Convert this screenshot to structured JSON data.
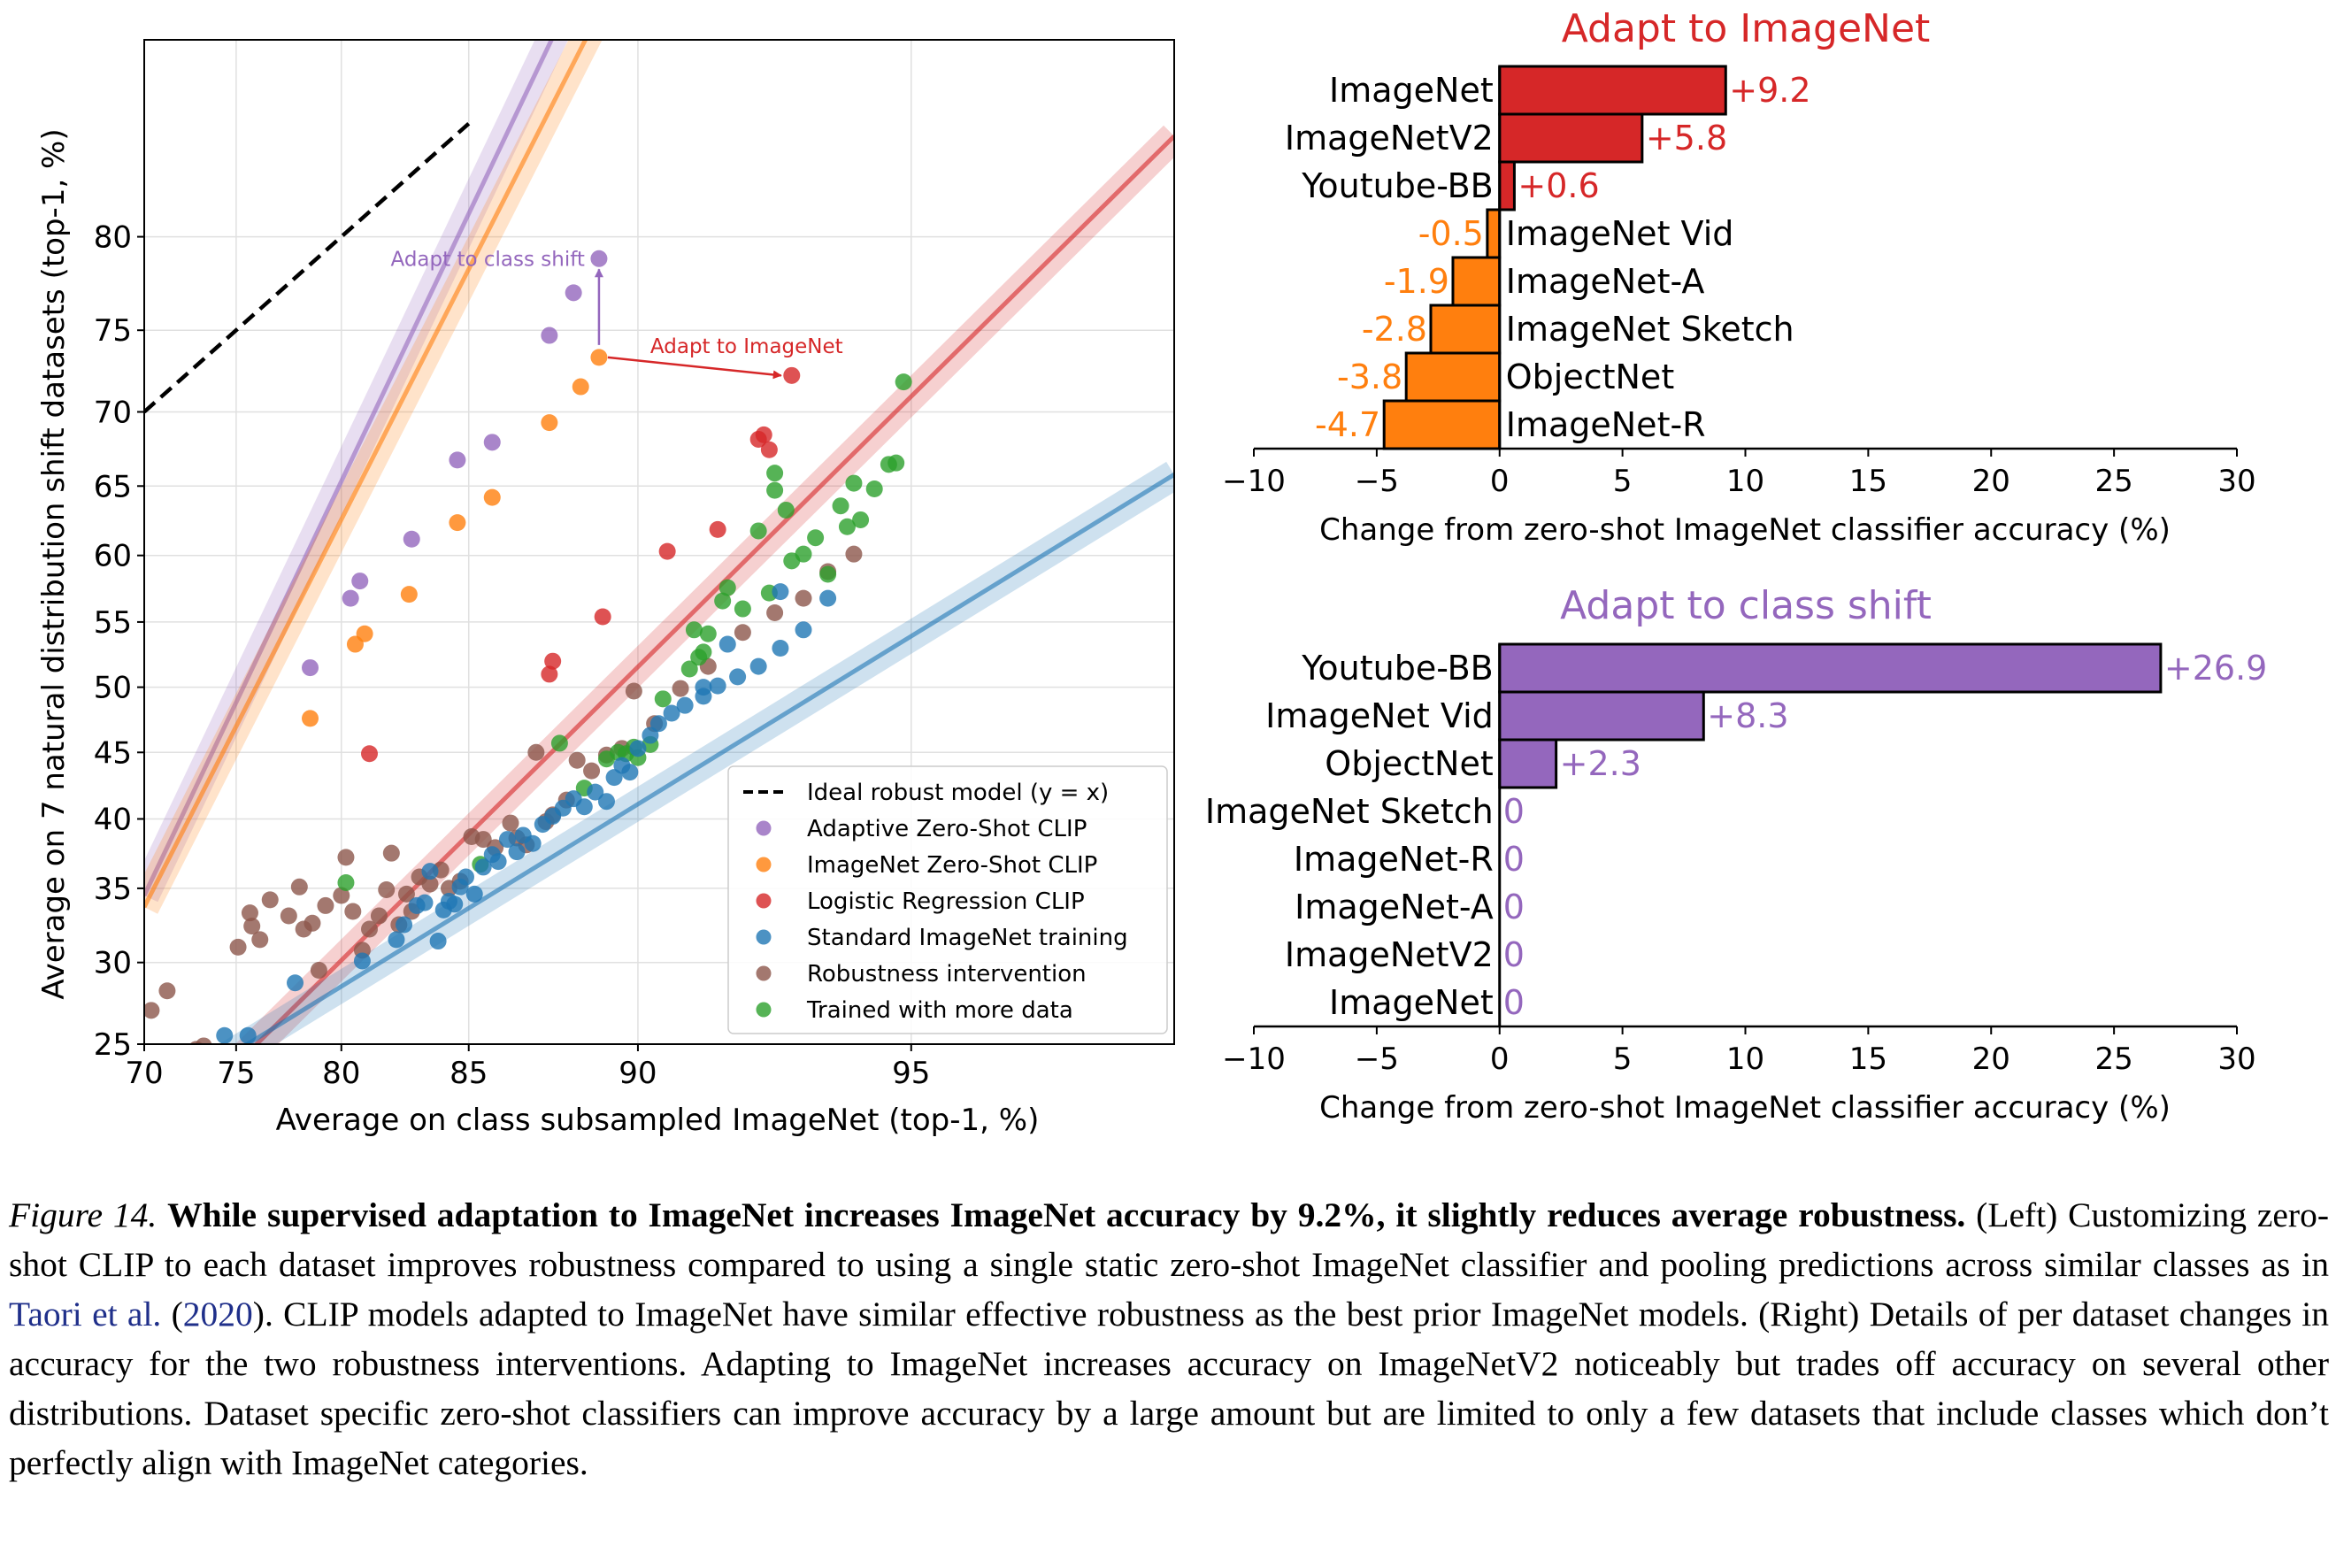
{
  "caption": {
    "figure_label": "Figure 14.",
    "bold_text": "While supervised adaptation to ImageNet increases ImageNet accuracy by 9.2%, it slightly reduces average robustness.",
    "body_before_cite": "(Left) Customizing zero-shot CLIP to each dataset improves robustness compared to using a single static zero-shot ImageNet classifier and pooling predictions across similar classes as in",
    "cite_author": "Taori et al.",
    "cite_year_open": " (",
    "cite_year": "2020",
    "cite_year_close": ").",
    "body_after_cite": " CLIP models adapted to ImageNet have similar effective robustness as the best prior ImageNet models. (Right) Details of per dataset changes in accuracy for the two robustness interventions. Adapting to ImageNet increases accuracy on ImageNetV2 noticeably but trades off accuracy on several other distributions. Dataset specific zero-shot classifiers can improve accuracy by a large amount but are limited to only a few datasets that include classes which don’t perfectly align with ImageNet categories."
  },
  "chart_data": [
    {
      "type": "scatter",
      "xlabel": "Average on class subsampled ImageNet (top-1, %)",
      "ylabel": "Average on 7 natural distribution shift datasets (top-1, %)",
      "xlim": [
        70,
        97.5
      ],
      "ylim": [
        25,
        88
      ],
      "y_scale": "logit",
      "x_scale": "logit",
      "x_ticks": [
        70,
        75,
        80,
        85,
        90,
        95
      ],
      "y_ticks": [
        25,
        30,
        35,
        40,
        45,
        50,
        55,
        60,
        65,
        70,
        75,
        80
      ],
      "grid": true,
      "legend_position": "lower-right",
      "ideal_line": {
        "label": "Ideal robust model (y = x)",
        "color": "#000000"
      },
      "annotations": [
        {
          "text": "Adapt to class shift",
          "color": "#9467bd",
          "from": [
            89.0,
            73.4
          ],
          "to": [
            89.0,
            78.9
          ]
        },
        {
          "text": "Adapt to ImageNet",
          "color": "#d62728",
          "from": [
            89.0,
            73.4
          ],
          "to": [
            93.2,
            72.3
          ]
        }
      ],
      "series": [
        {
          "name": "Adaptive Zero-Shot CLIP",
          "color": "#9467bd",
          "fit": [
            [
              70,
              34.5
            ],
            [
              91.4,
              95
            ]
          ],
          "points": [
            [
              78.6,
              51.5
            ],
            [
              80.4,
              56.8
            ],
            [
              80.8,
              58.1
            ],
            [
              82.9,
              61.2
            ],
            [
              84.6,
              66.8
            ],
            [
              85.8,
              68.0
            ],
            [
              87.6,
              74.7
            ],
            [
              88.3,
              77.1
            ],
            [
              89.0,
              78.9
            ]
          ]
        },
        {
          "name": "ImageNet Zero-Shot CLIP",
          "color": "#ff7f0e",
          "fit": [
            [
              70,
              33.7
            ],
            [
              92.3,
              95
            ]
          ],
          "points": [
            [
              78.6,
              47.6
            ],
            [
              80.6,
              53.3
            ],
            [
              81.0,
              54.1
            ],
            [
              82.8,
              57.1
            ],
            [
              84.6,
              62.4
            ],
            [
              85.8,
              64.2
            ],
            [
              87.6,
              69.3
            ],
            [
              88.5,
              71.6
            ],
            [
              89.0,
              73.4
            ]
          ]
        },
        {
          "name": "Logistic Regression CLIP",
          "color": "#d62728",
          "fit": [
            [
              73.2,
              22.0
            ],
            [
              97.5,
              84.5
            ]
          ],
          "points": [
            [
              81.2,
              44.9
            ],
            [
              87.6,
              51.0
            ],
            [
              87.7,
              52.0
            ],
            [
              89.1,
              55.4
            ],
            [
              90.7,
              60.3
            ],
            [
              91.8,
              61.9
            ],
            [
              93.2,
              72.3
            ],
            [
              92.8,
              67.5
            ],
            [
              92.6,
              68.2
            ],
            [
              92.7,
              68.5
            ]
          ]
        },
        {
          "name": "Standard ImageNet training",
          "color": "#1f77b4",
          "fit": [
            [
              73.8,
              23.8
            ],
            [
              97.5,
              65.8
            ]
          ],
          "points": [
            [
              74.4,
              25.5
            ],
            [
              75.6,
              25.5
            ],
            [
              77.9,
              28.7
            ],
            [
              80.9,
              30.1
            ],
            [
              82.3,
              31.5
            ],
            [
              82.6,
              32.5
            ],
            [
              83.1,
              33.8
            ],
            [
              83.4,
              34.0
            ],
            [
              83.6,
              36.2
            ],
            [
              83.9,
              31.4
            ],
            [
              84.1,
              33.5
            ],
            [
              84.3,
              34.1
            ],
            [
              84.5,
              33.9
            ],
            [
              84.7,
              35.1
            ],
            [
              84.9,
              35.8
            ],
            [
              85.2,
              34.6
            ],
            [
              85.5,
              36.5
            ],
            [
              85.8,
              37.4
            ],
            [
              86.0,
              36.9
            ],
            [
              86.3,
              38.5
            ],
            [
              86.6,
              37.6
            ],
            [
              86.8,
              38.8
            ],
            [
              87.1,
              38.2
            ],
            [
              87.4,
              39.6
            ],
            [
              87.7,
              40.2
            ],
            [
              88.0,
              40.8
            ],
            [
              88.3,
              41.5
            ],
            [
              88.6,
              40.9
            ],
            [
              88.9,
              42.0
            ],
            [
              89.2,
              41.3
            ],
            [
              89.4,
              43.1
            ],
            [
              89.6,
              44.0
            ],
            [
              89.8,
              43.5
            ],
            [
              90.0,
              45.3
            ],
            [
              90.3,
              46.3
            ],
            [
              90.5,
              47.2
            ],
            [
              90.8,
              48.0
            ],
            [
              91.1,
              48.6
            ],
            [
              91.5,
              49.3
            ],
            [
              91.8,
              50.1
            ],
            [
              92.2,
              50.8
            ],
            [
              92.6,
              51.6
            ],
            [
              93.0,
              53.0
            ],
            [
              93.4,
              54.4
            ],
            [
              93.8,
              56.8
            ],
            [
              93.0,
              57.3
            ],
            [
              92.0,
              53.3
            ],
            [
              91.5,
              50.0
            ]
          ]
        },
        {
          "name": "Robustness intervention",
          "color": "#8c564b",
          "fit": null,
          "points": [
            [
              70.4,
              27.0
            ],
            [
              71.3,
              28.2
            ],
            [
              72.9,
              24.7
            ],
            [
              73.3,
              24.9
            ],
            [
              75.1,
              31.0
            ],
            [
              75.7,
              33.3
            ],
            [
              75.8,
              32.4
            ],
            [
              76.2,
              31.5
            ],
            [
              76.7,
              34.2
            ],
            [
              77.6,
              33.1
            ],
            [
              78.1,
              35.1
            ],
            [
              78.3,
              32.2
            ],
            [
              78.7,
              32.6
            ],
            [
              79.0,
              29.5
            ],
            [
              79.3,
              33.8
            ],
            [
              80.0,
              34.5
            ],
            [
              80.2,
              37.2
            ],
            [
              80.5,
              33.4
            ],
            [
              80.9,
              30.8
            ],
            [
              81.2,
              32.2
            ],
            [
              81.6,
              33.1
            ],
            [
              81.9,
              34.9
            ],
            [
              82.1,
              37.5
            ],
            [
              82.4,
              32.5
            ],
            [
              82.7,
              34.6
            ],
            [
              82.9,
              33.4
            ],
            [
              83.2,
              35.8
            ],
            [
              83.6,
              35.3
            ],
            [
              84.0,
              36.3
            ],
            [
              84.3,
              35.0
            ],
            [
              84.7,
              35.5
            ],
            [
              85.1,
              38.7
            ],
            [
              85.5,
              38.5
            ],
            [
              85.9,
              37.9
            ],
            [
              86.4,
              39.7
            ],
            [
              86.6,
              38.6
            ],
            [
              86.9,
              38.1
            ],
            [
              87.2,
              45.0
            ],
            [
              87.5,
              39.8
            ],
            [
              87.7,
              40.3
            ],
            [
              88.1,
              41.4
            ],
            [
              88.4,
              44.4
            ],
            [
              88.8,
              43.6
            ],
            [
              89.2,
              44.8
            ],
            [
              89.6,
              45.3
            ],
            [
              89.9,
              49.7
            ],
            [
              90.4,
              47.2
            ],
            [
              91.0,
              49.9
            ],
            [
              91.6,
              51.6
            ],
            [
              92.3,
              54.2
            ],
            [
              92.9,
              55.7
            ],
            [
              93.4,
              56.8
            ],
            [
              93.8,
              58.8
            ],
            [
              94.2,
              60.1
            ]
          ]
        },
        {
          "name": "Trained with more data",
          "color": "#2ca02c",
          "fit": null,
          "points": [
            [
              80.2,
              35.4
            ],
            [
              85.4,
              36.7
            ],
            [
              87.9,
              45.7
            ],
            [
              88.6,
              42.3
            ],
            [
              89.2,
              44.5
            ],
            [
              89.5,
              45.0
            ],
            [
              89.7,
              44.9
            ],
            [
              89.9,
              45.4
            ],
            [
              90.0,
              44.6
            ],
            [
              90.3,
              45.6
            ],
            [
              90.6,
              49.1
            ],
            [
              91.2,
              51.4
            ],
            [
              91.4,
              52.3
            ],
            [
              91.5,
              52.7
            ],
            [
              91.6,
              54.1
            ],
            [
              91.9,
              56.6
            ],
            [
              92.0,
              57.6
            ],
            [
              92.3,
              56.0
            ],
            [
              92.6,
              61.8
            ],
            [
              92.8,
              57.2
            ],
            [
              93.1,
              63.3
            ],
            [
              93.4,
              60.1
            ],
            [
              93.6,
              61.3
            ],
            [
              93.8,
              58.6
            ],
            [
              94.0,
              63.6
            ],
            [
              94.2,
              65.2
            ],
            [
              94.3,
              62.6
            ],
            [
              94.5,
              64.8
            ],
            [
              94.7,
              66.5
            ],
            [
              94.8,
              66.6
            ],
            [
              94.9,
              71.9
            ],
            [
              94.1,
              62.1
            ],
            [
              93.2,
              59.6
            ],
            [
              92.9,
              64.7
            ],
            [
              92.9,
              65.9
            ],
            [
              91.3,
              54.4
            ]
          ]
        }
      ]
    },
    {
      "type": "bar",
      "orientation": "horizontal",
      "title": "Adapt to ImageNet",
      "title_color": "#d62728",
      "xlabel": "Change from zero-shot ImageNet classifier accuracy (%)",
      "xlim": [
        -10,
        30
      ],
      "x_ticks": [
        -10,
        -5,
        0,
        5,
        10,
        15,
        20,
        25,
        30
      ],
      "positive_color": "#d62728",
      "negative_color": "#ff7f0e",
      "categories": [
        "ImageNet",
        "ImageNetV2",
        "Youtube-BB",
        "ImageNet Vid",
        "ImageNet-A",
        "ImageNet Sketch",
        "ObjectNet",
        "ImageNet-R"
      ],
      "values": [
        9.2,
        5.8,
        0.6,
        -0.5,
        -1.9,
        -2.8,
        -3.8,
        -4.7
      ],
      "value_labels": [
        "+9.2",
        "+5.8",
        "+0.6",
        "-0.5",
        "-1.9",
        "-2.8",
        "-3.8",
        "-4.7"
      ]
    },
    {
      "type": "bar",
      "orientation": "horizontal",
      "title": "Adapt to class shift",
      "title_color": "#9467bd",
      "xlabel": "Change from zero-shot ImageNet classifier accuracy (%)",
      "xlim": [
        -10,
        30
      ],
      "x_ticks": [
        -10,
        -5,
        0,
        5,
        10,
        15,
        20,
        25,
        30
      ],
      "positive_color": "#9467bd",
      "negative_color": "#9467bd",
      "categories": [
        "Youtube-BB",
        "ImageNet Vid",
        "ObjectNet",
        "ImageNet Sketch",
        "ImageNet-R",
        "ImageNet-A",
        "ImageNetV2",
        "ImageNet"
      ],
      "values": [
        26.9,
        8.3,
        2.3,
        0,
        0,
        0,
        0,
        0
      ],
      "value_labels": [
        "+26.9",
        "+8.3",
        "+2.3",
        "0",
        "0",
        "0",
        "0",
        "0"
      ]
    }
  ]
}
